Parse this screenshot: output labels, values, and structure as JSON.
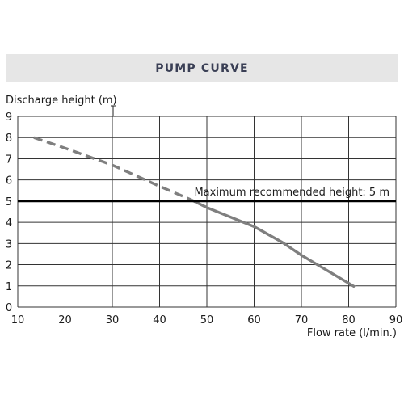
{
  "header": {
    "title": "PUMP CURVE"
  },
  "chart_data": {
    "type": "line",
    "title": "PUMP CURVE",
    "xlabel": "Flow rate (l/min.)",
    "ylabel": "Discharge height (m)",
    "xlim": [
      10,
      90
    ],
    "ylim": [
      0,
      9
    ],
    "xticks": [
      10,
      20,
      30,
      40,
      50,
      60,
      70,
      80,
      90
    ],
    "yticks": [
      0,
      1,
      2,
      3,
      4,
      5,
      6,
      7,
      8,
      9
    ],
    "grid": true,
    "series": [
      {
        "style": "dashed",
        "color": "#7f7f7f",
        "x": [
          13.4,
          20,
          30,
          40,
          46.8
        ],
        "y": [
          8.0,
          7.5,
          6.7,
          5.7,
          5.05
        ]
      },
      {
        "style": "solid",
        "color": "#7f7f7f",
        "x": [
          46.8,
          50,
          60,
          66,
          70,
          81.3
        ],
        "y": [
          5.05,
          4.7,
          3.8,
          3.05,
          2.45,
          0.95
        ]
      }
    ],
    "reference_line": {
      "y": 5,
      "label": "Maximum recommended height: 5 m",
      "color": "#000000"
    },
    "colors": {
      "grid": "#333333",
      "curve": "#7f7f7f",
      "title_band": "#e6e6e6",
      "title_text": "#3a3f55"
    }
  }
}
